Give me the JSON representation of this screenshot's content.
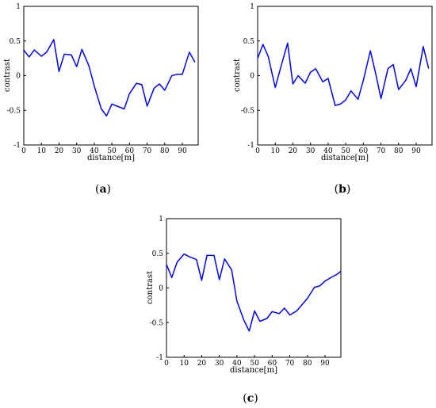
{
  "chart_data": [
    {
      "panel_label": "(a)",
      "panel_letter": "a",
      "type": "line",
      "xlabel": "distance[m]",
      "ylabel": "contrast",
      "xlim": [
        0,
        99
      ],
      "ylim": [
        -1,
        1
      ],
      "xticks": [
        0,
        10,
        20,
        30,
        40,
        50,
        60,
        70,
        80,
        90
      ],
      "yticks": [
        1,
        0.5,
        0,
        -0.5,
        -1
      ],
      "x": [
        0,
        3,
        6,
        10,
        13,
        17,
        20,
        23,
        27,
        30,
        33,
        37,
        40,
        44,
        47,
        50,
        53,
        57,
        60,
        64,
        67,
        70,
        74,
        77,
        80,
        84,
        87,
        90,
        94,
        97
      ],
      "series": [
        {
          "color": "#0000ff",
          "values": [
            0.37,
            0.27,
            0.37,
            0.28,
            0.34,
            0.52,
            0.06,
            0.31,
            0.3,
            0.13,
            0.38,
            0.14,
            -0.15,
            -0.48,
            -0.58,
            -0.41,
            -0.44,
            -0.48,
            -0.26,
            -0.11,
            -0.13,
            -0.44,
            -0.18,
            -0.12,
            -0.21,
            0.0,
            0.02,
            0.02,
            0.34,
            0.2
          ]
        }
      ]
    },
    {
      "panel_label": "(b)",
      "panel_letter": "b",
      "type": "line",
      "xlabel": "distance[m]",
      "ylabel": "contrast",
      "xlim": [
        0,
        99
      ],
      "ylim": [
        -1,
        1
      ],
      "xticks": [
        0,
        10,
        20,
        30,
        40,
        50,
        60,
        70,
        80,
        90
      ],
      "yticks": [
        1,
        0.5,
        0,
        -0.5,
        -1
      ],
      "x": [
        0,
        3,
        6,
        10,
        13,
        17,
        20,
        23,
        27,
        30,
        33,
        37,
        40,
        44,
        47,
        50,
        53,
        57,
        60,
        64,
        67,
        70,
        74,
        77,
        80,
        84,
        87,
        90,
        94,
        97
      ],
      "series": [
        {
          "color": "#0000ff",
          "values": [
            0.25,
            0.45,
            0.28,
            -0.17,
            0.11,
            0.47,
            -0.12,
            0.0,
            -0.11,
            0.05,
            0.1,
            -0.09,
            -0.04,
            -0.43,
            -0.41,
            -0.35,
            -0.22,
            -0.34,
            -0.07,
            0.36,
            0.03,
            -0.33,
            0.1,
            0.16,
            -0.2,
            -0.07,
            0.1,
            -0.16,
            0.42,
            0.11
          ]
        }
      ]
    },
    {
      "panel_label": "(c)",
      "panel_letter": "c",
      "type": "line",
      "xlabel": "distance[m]",
      "ylabel": "contrast",
      "xlim": [
        0,
        99
      ],
      "ylim": [
        -1,
        1
      ],
      "xticks": [
        0,
        10,
        20,
        30,
        40,
        50,
        60,
        70,
        80,
        90
      ],
      "yticks": [
        1,
        0.5,
        0,
        -0.5,
        -1
      ],
      "x": [
        0,
        3,
        6,
        10,
        13,
        17,
        20,
        23,
        27,
        30,
        33,
        37,
        40,
        44,
        47,
        50,
        53,
        57,
        60,
        64,
        67,
        70,
        74,
        77,
        80,
        84,
        87,
        90,
        94,
        97,
        99
      ],
      "series": [
        {
          "color": "#0000ff",
          "values": [
            0.34,
            0.15,
            0.37,
            0.49,
            0.45,
            0.41,
            0.11,
            0.47,
            0.47,
            0.12,
            0.42,
            0.26,
            -0.19,
            -0.47,
            -0.62,
            -0.33,
            -0.48,
            -0.44,
            -0.34,
            -0.37,
            -0.29,
            -0.39,
            -0.33,
            -0.24,
            -0.15,
            0.01,
            0.03,
            0.1,
            0.16,
            0.2,
            0.24
          ]
        }
      ]
    }
  ]
}
